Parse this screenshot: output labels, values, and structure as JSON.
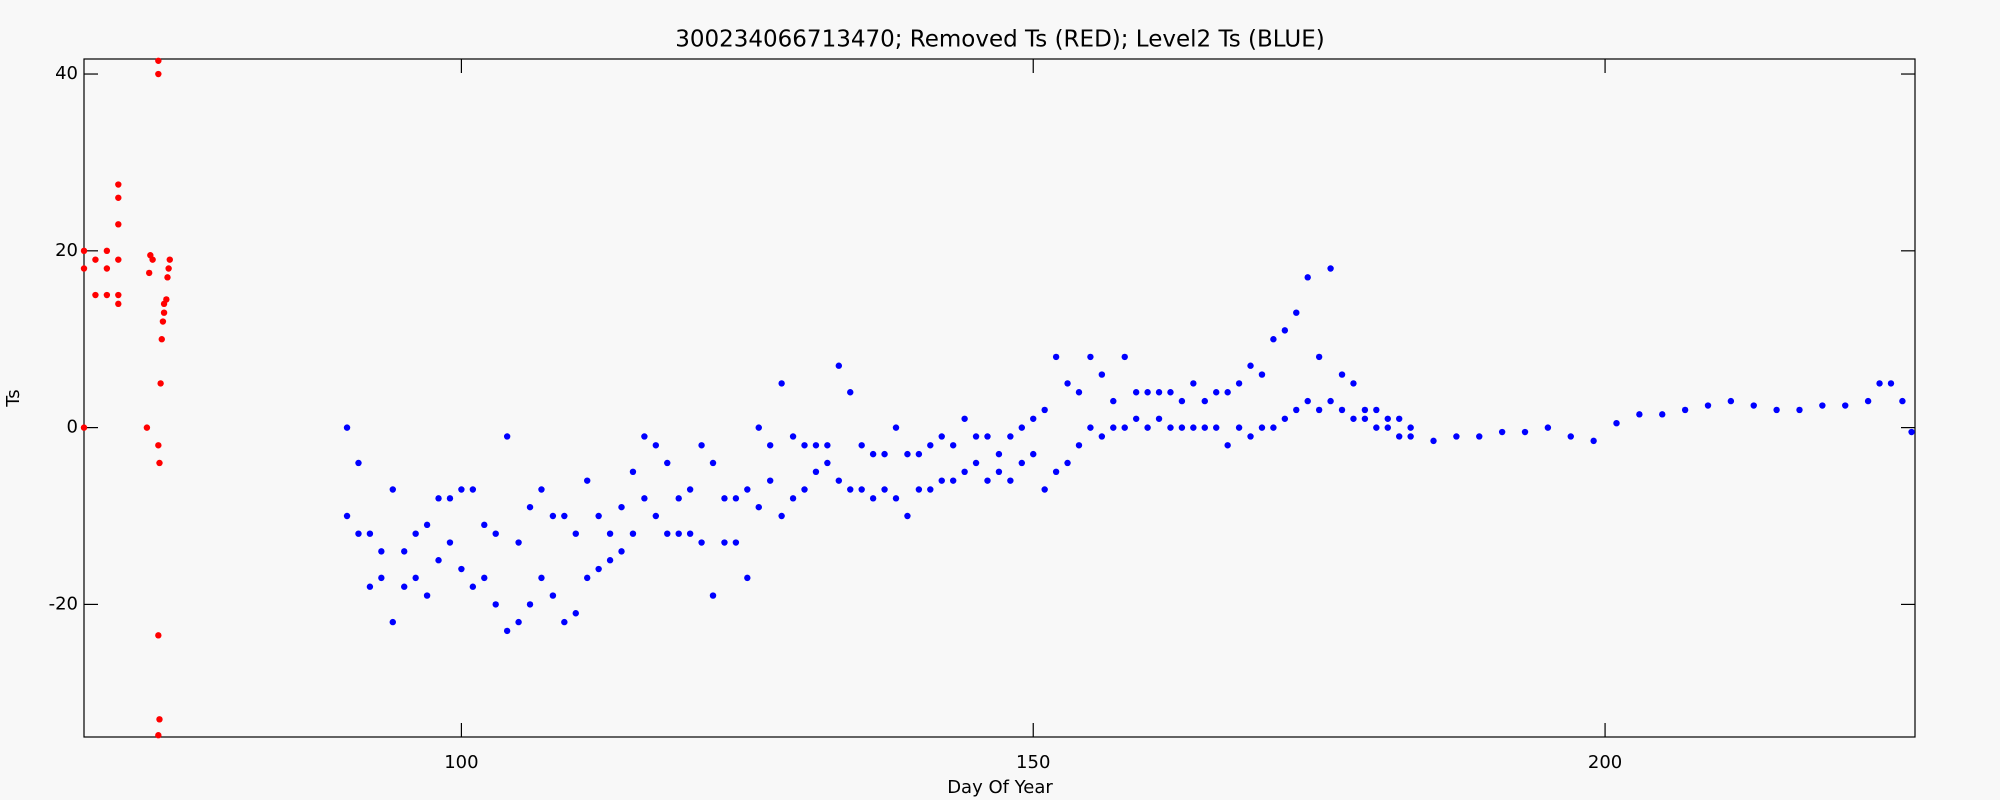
{
  "chart_data": {
    "type": "scatter",
    "title": "300234066713470; Removed Ts (RED); Level2 Ts (BLUE)",
    "x_label": "Day Of Year",
    "y_label": "Ts",
    "xlim": [
      67,
      227.1
    ],
    "ylim": [
      -35,
      41.7
    ],
    "xticks": [
      100,
      150,
      200
    ],
    "yticks": [
      -20,
      0,
      20,
      40
    ],
    "series": [
      {
        "color": "#ff0000",
        "x": [
          67,
          67,
          67,
          68,
          68,
          69,
          69,
          69,
          70,
          70,
          70,
          70,
          70,
          70,
          72.5,
          72.7,
          72.8,
          73,
          73.5,
          73.6,
          73.7,
          73.8,
          73.9,
          74,
          74,
          74.2,
          74.3,
          74.4,
          74.5,
          73.5,
          73.5,
          73.5,
          73.6,
          73.5
        ],
        "values": [
          20,
          18,
          0,
          19,
          15,
          20,
          18,
          15,
          19,
          14,
          15,
          23,
          26,
          27.5,
          0,
          17.5,
          19.5,
          19,
          -2,
          -4,
          5,
          10,
          12,
          13,
          14,
          14.5,
          17,
          18,
          19,
          40,
          41.5,
          -23.5,
          -33,
          -34.8
        ]
      },
      {
        "color": "#0000ff",
        "x": [
          90,
          90,
          91,
          91,
          92,
          92,
          93,
          93,
          94,
          94,
          95,
          95,
          96,
          96,
          97,
          97,
          98,
          98,
          99,
          99,
          100,
          100,
          101,
          101,
          102,
          102,
          103,
          103,
          104,
          104,
          105,
          105,
          106,
          106,
          107,
          107,
          108,
          108,
          109,
          109,
          110,
          110,
          111,
          111,
          112,
          112,
          113,
          113,
          114,
          114,
          115,
          115,
          116,
          116,
          117,
          117,
          118,
          118,
          119,
          119,
          120,
          120,
          121,
          121,
          122,
          122,
          123,
          123,
          124,
          124,
          125,
          125,
          126,
          126,
          127,
          127,
          128,
          128,
          129,
          129,
          130,
          130,
          131,
          131,
          132,
          132,
          133,
          133,
          134,
          134,
          135,
          135,
          136,
          136,
          137,
          137,
          138,
          138,
          139,
          139,
          140,
          140,
          141,
          141,
          142,
          142,
          143,
          143,
          144,
          144,
          145,
          145,
          146,
          146,
          147,
          147,
          148,
          148,
          149,
          149,
          150,
          150,
          151,
          151,
          152,
          152,
          153,
          153,
          154,
          154,
          155,
          155,
          156,
          156,
          157,
          157,
          158,
          158,
          159,
          159,
          160,
          160,
          161,
          161,
          162,
          162,
          163,
          163,
          164,
          164,
          165,
          165,
          166,
          166,
          167,
          167,
          168,
          168,
          169,
          169,
          170,
          170,
          171,
          171,
          172,
          172,
          173,
          173,
          174,
          174,
          175,
          175,
          176,
          176,
          177,
          177,
          178,
          178,
          179,
          179,
          180,
          180,
          181,
          181,
          182,
          182,
          183,
          183,
          185,
          187,
          189,
          191,
          193,
          195,
          197,
          199,
          201,
          203,
          205,
          207,
          209,
          211,
          213,
          215,
          217,
          219,
          221,
          223,
          224,
          225,
          226,
          226.8
        ],
        "values": [
          0,
          -10,
          -4,
          -12,
          -12,
          -18,
          -14,
          -17,
          -7,
          -22,
          -14,
          -18,
          -12,
          -17,
          -11,
          -19,
          -8,
          -15,
          -8,
          -13,
          -7,
          -16,
          -7,
          -18,
          -11,
          -17,
          -12,
          -20,
          -1,
          -23,
          -13,
          -22,
          -9,
          -20,
          -7,
          -17,
          -10,
          -19,
          -10,
          -22,
          -12,
          -21,
          -6,
          -17,
          -10,
          -16,
          -12,
          -15,
          -9,
          -14,
          -5,
          -12,
          -1,
          -8,
          -2,
          -10,
          -4,
          -12,
          -8,
          -12,
          -7,
          -12,
          -2,
          -13,
          -4,
          -19,
          -8,
          -13,
          -8,
          -13,
          -7,
          -17,
          0,
          -9,
          -2,
          -6,
          5,
          -10,
          -1,
          -8,
          -2,
          -7,
          -2,
          -5,
          -2,
          -4,
          7,
          -6,
          4,
          -7,
          -2,
          -7,
          -3,
          -8,
          -3,
          -7,
          0,
          -8,
          -3,
          -10,
          -3,
          -7,
          -2,
          -7,
          -1,
          -6,
          -2,
          -6,
          1,
          -5,
          -1,
          -4,
          -1,
          -6,
          -3,
          -5,
          -1,
          -6,
          0,
          -4,
          1,
          -3,
          2,
          -7,
          8,
          -5,
          5,
          -4,
          4,
          -2,
          8,
          0,
          6,
          -1,
          3,
          0,
          8,
          0,
          4,
          1,
          4,
          0,
          4,
          1,
          4,
          0,
          3,
          0,
          5,
          0,
          3,
          0,
          4,
          0,
          4,
          -2,
          5,
          0,
          7,
          -1,
          6,
          0,
          10,
          0,
          11,
          1,
          13,
          2,
          17,
          3,
          8,
          2,
          18,
          3,
          6,
          2,
          5,
          1,
          2,
          1,
          2,
          0,
          1,
          0,
          1,
          -1,
          0,
          -1,
          -1.5,
          -1,
          -1,
          -0.5,
          -0.5,
          0,
          -1,
          -1.5,
          0.5,
          1.5,
          1.5,
          2,
          2.5,
          3,
          2.5,
          2,
          2,
          2.5,
          2.5,
          3,
          5,
          5,
          3,
          -0.5
        ]
      }
    ]
  }
}
